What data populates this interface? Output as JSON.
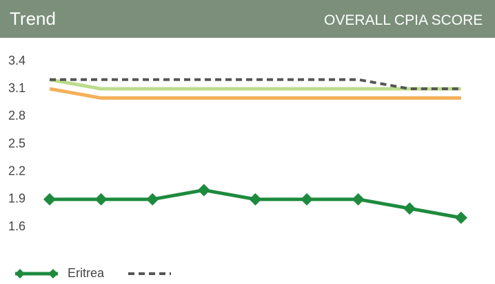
{
  "header": {
    "title": "Trend",
    "subtitle": "OVERALL CPIA SCORE"
  },
  "chart_data": {
    "type": "line",
    "categories": [
      null,
      null,
      null,
      null,
      null,
      null,
      null,
      null,
      null
    ],
    "series": [
      {
        "name": null,
        "color": "#bcdc8c",
        "dash": false,
        "values": [
          3.2,
          3.1,
          3.1,
          3.1,
          3.1,
          3.1,
          3.1,
          3.1,
          3.1
        ]
      },
      {
        "name": null,
        "color": "#f4b05a",
        "dash": false,
        "values": [
          3.1,
          3.0,
          3.0,
          3.0,
          3.0,
          3.0,
          3.0,
          3.0,
          3.0
        ]
      },
      {
        "name": "Eritrea",
        "color": "#1e8a3e",
        "dash": false,
        "marker": "diamond",
        "values": [
          1.9,
          1.9,
          1.9,
          2.0,
          1.9,
          1.9,
          1.9,
          1.8,
          1.7
        ]
      },
      {
        "name": null,
        "color": "#555555",
        "dash": true,
        "values": [
          3.2,
          3.2,
          3.2,
          3.2,
          3.2,
          3.2,
          3.2,
          3.1,
          3.1
        ]
      }
    ],
    "legend_series": [
      2,
      3
    ],
    "ylim": [
      1.6,
      3.4
    ],
    "yticks": [
      1.6,
      1.9,
      2.2,
      2.5,
      2.8,
      3.1,
      3.4
    ],
    "grid": false
  }
}
